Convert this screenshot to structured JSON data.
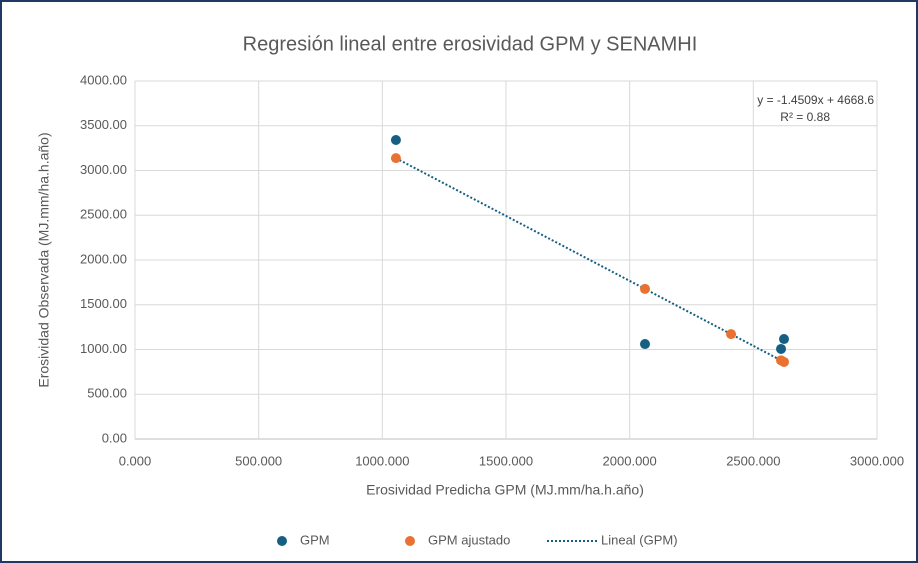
{
  "chart_data": {
    "type": "scatter",
    "title": "Regresión lineal entre erosividad GPM y SENAMHI",
    "x_label": "Erosividad Predicha GPM (MJ.mm/ha.h.año)",
    "y_label": "Erosividad Observada (MJ.mm/ha.h.año)",
    "annotations": [
      "y = -1.4509x + 4668.6",
      "R² = 0.88"
    ],
    "xlim": [
      0,
      3000
    ],
    "ylim": [
      0,
      4000
    ],
    "xticks": [
      {
        "value": 0,
        "label": "0.000"
      },
      {
        "value": 500,
        "label": "500.000"
      },
      {
        "value": 1000,
        "label": "1000.000"
      },
      {
        "value": 1500,
        "label": "1500.000"
      },
      {
        "value": 2000,
        "label": "2000.000"
      },
      {
        "value": 2500,
        "label": "2500.000"
      },
      {
        "value": 3000,
        "label": "3000.000"
      }
    ],
    "yticks": [
      {
        "value": 0,
        "label": "0.00"
      },
      {
        "value": 500,
        "label": "500.00"
      },
      {
        "value": 1000,
        "label": "1000.00"
      },
      {
        "value": 1500,
        "label": "1500.00"
      },
      {
        "value": 2000,
        "label": "2000.00"
      },
      {
        "value": 2500,
        "label": "2500.00"
      },
      {
        "value": 3000,
        "label": "3000.00"
      },
      {
        "value": 3500,
        "label": "3500.00"
      },
      {
        "value": 4000,
        "label": "4000.00"
      }
    ],
    "grid": true,
    "legend": "bottom",
    "series": [
      {
        "name": "GPM",
        "color": "#156082",
        "kind": "points",
        "x": [
          1055,
          2062,
          2612,
          2624
        ],
        "values": [
          3341,
          1061,
          1006,
          1117
        ]
      },
      {
        "name": "GPM ajustado",
        "color": "#e97132",
        "kind": "points",
        "x": [
          1055,
          2062,
          2410,
          2612,
          2624
        ],
        "values": [
          3138,
          1677,
          1172,
          879,
          861
        ]
      },
      {
        "name": "Lineal (GPM)",
        "color": "#156082",
        "kind": "dotted-line",
        "x": [
          1055,
          2624
        ],
        "values": [
          3138,
          861
        ]
      }
    ]
  }
}
